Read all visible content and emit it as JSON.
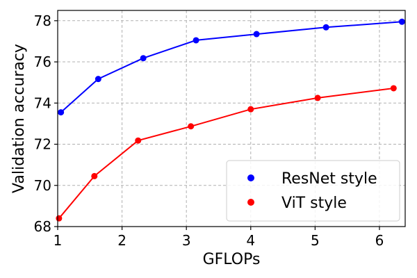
{
  "chart_data": {
    "type": "line",
    "xlabel": "GFLOPs",
    "ylabel": "Validation accuracy",
    "xlim": [
      1.0,
      6.4
    ],
    "ylim": [
      68,
      78.5
    ],
    "xticks": [
      "1",
      "2",
      "3",
      "4",
      "5",
      "6"
    ],
    "yticks": [
      "68",
      "70",
      "72",
      "74",
      "76",
      "78"
    ],
    "grid": true,
    "legend_position": "bottom-right",
    "series": [
      {
        "name": "ResNet style",
        "color": "#0000ff",
        "x": [
          1.05,
          1.63,
          2.33,
          3.15,
          4.09,
          5.17,
          6.35
        ],
        "y": [
          73.55,
          75.17,
          76.18,
          77.05,
          77.35,
          77.68,
          77.95
        ]
      },
      {
        "name": "ViT style",
        "color": "#ff0000",
        "x": [
          1.02,
          1.57,
          2.25,
          3.07,
          4.0,
          5.04,
          6.22
        ],
        "y": [
          68.4,
          70.45,
          72.18,
          72.87,
          73.7,
          74.25,
          74.72
        ]
      }
    ]
  }
}
